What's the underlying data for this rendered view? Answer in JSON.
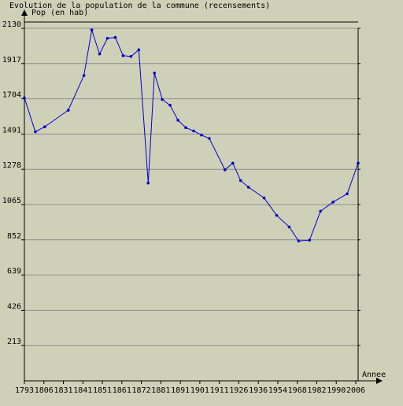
{
  "chart_data": {
    "type": "line",
    "title": "Evolution de la population de la commune (recensements)",
    "ylabel": "Pop (en hab)",
    "xlabel": "Annee",
    "ylim": [
      0,
      2130
    ],
    "y_ticks": [
      213,
      426,
      639,
      852,
      1065,
      1278,
      1491,
      1704,
      1917,
      2130
    ],
    "x_tick_labels": [
      "1793",
      "1806",
      "1831",
      "1841",
      "1851",
      "1861",
      "1872",
      "1881",
      "1891",
      "1901",
      "1911",
      "1926",
      "1936",
      "1954",
      "1968",
      "1982",
      "1990",
      "2006"
    ],
    "grid": true,
    "series": [
      {
        "color": "#0000cc",
        "points": [
          {
            "x": 1793,
            "y": 1710
          },
          {
            "x": 1800,
            "y": 1505
          },
          {
            "x": 1806,
            "y": 1535
          },
          {
            "x": 1821,
            "y": 1635
          },
          {
            "x": 1831,
            "y": 1845
          },
          {
            "x": 1836,
            "y": 2120
          },
          {
            "x": 1841,
            "y": 1975
          },
          {
            "x": 1846,
            "y": 2070
          },
          {
            "x": 1851,
            "y": 2075
          },
          {
            "x": 1856,
            "y": 1965
          },
          {
            "x": 1861,
            "y": 1960
          },
          {
            "x": 1866,
            "y": 2000
          },
          {
            "x": 1872,
            "y": 1195
          },
          {
            "x": 1876,
            "y": 1860
          },
          {
            "x": 1881,
            "y": 1700
          },
          {
            "x": 1886,
            "y": 1665
          },
          {
            "x": 1891,
            "y": 1575
          },
          {
            "x": 1896,
            "y": 1530
          },
          {
            "x": 1901,
            "y": 1510
          },
          {
            "x": 1906,
            "y": 1485
          },
          {
            "x": 1911,
            "y": 1465
          },
          {
            "x": 1921,
            "y": 1275
          },
          {
            "x": 1926,
            "y": 1315
          },
          {
            "x": 1931,
            "y": 1210
          },
          {
            "x": 1936,
            "y": 1170
          },
          {
            "x": 1946,
            "y": 1105
          },
          {
            "x": 1954,
            "y": 1000
          },
          {
            "x": 1962,
            "y": 930
          },
          {
            "x": 1968,
            "y": 845
          },
          {
            "x": 1975,
            "y": 850
          },
          {
            "x": 1982,
            "y": 1025
          },
          {
            "x": 1990,
            "y": 1080
          },
          {
            "x": 1999,
            "y": 1130
          },
          {
            "x": 2006,
            "y": 1315
          }
        ]
      }
    ]
  }
}
